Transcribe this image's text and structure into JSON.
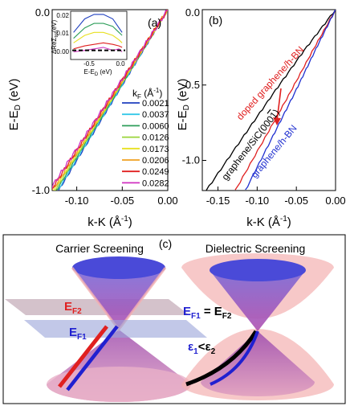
{
  "chart_data": [
    {
      "panel": "a",
      "panel_label": "(a)",
      "type": "line",
      "xlabel": "k-K (Å⁻¹)",
      "ylabel": "E-E_D (eV)",
      "xlim": [
        -0.127,
        0.0
      ],
      "ylim": [
        -1.0,
        0.0
      ],
      "xticks": [
        "-0.10",
        "-0.05",
        "0.00"
      ],
      "yticks": [
        "0.0",
        "-1.0"
      ],
      "legend_title": "k_F (Å⁻¹)",
      "legend_position": "right",
      "series": [
        {
          "name": "0.0021",
          "color": "#1f3fbf",
          "x": [
            -0.12,
            0.0
          ],
          "y": [
            -1.0,
            0.0
          ]
        },
        {
          "name": "0.0037",
          "color": "#35c8e8",
          "x": [
            -0.121,
            0.0
          ],
          "y": [
            -1.0,
            0.0
          ]
        },
        {
          "name": "0.0060",
          "color": "#2e9e5a",
          "x": [
            -0.1225,
            0.0
          ],
          "y": [
            -1.0,
            0.0
          ]
        },
        {
          "name": "0.0126",
          "color": "#9ad43a",
          "x": [
            -0.124,
            0.0
          ],
          "y": [
            -1.0,
            0.0
          ]
        },
        {
          "name": "0.0173",
          "color": "#e8e020",
          "x": [
            -0.1255,
            0.0
          ],
          "y": [
            -1.0,
            0.0
          ]
        },
        {
          "name": "0.0206",
          "color": "#f0a020",
          "x": [
            -0.127,
            0.0
          ],
          "y": [
            -1.0,
            0.0
          ]
        },
        {
          "name": "0.0249",
          "color": "#e02020",
          "x": [
            -0.1285,
            0.0
          ],
          "y": [
            -1.0,
            0.0
          ]
        },
        {
          "name": "0.0282",
          "color": "#d030c0",
          "x": [
            -0.13,
            0.0
          ],
          "y": [
            -1.0,
            0.0
          ]
        }
      ],
      "inset": {
        "type": "line",
        "xlabel": "E-E_D (eV)",
        "ylabel": "ΔReΣ_tot (eV)",
        "xlim": [
          -0.8,
          0.05
        ],
        "ylim": [
          -0.005,
          0.025
        ],
        "xticks": [
          "-0.5",
          "0.0"
        ],
        "yticks": [
          "0.02",
          "0.01",
          "0.00"
        ],
        "series": [
          {
            "color": "#1f3fbf",
            "x": [
              -0.78,
              -0.6,
              -0.45,
              -0.3,
              -0.15,
              -0.05,
              0.0
            ],
            "y": [
              0.012,
              0.021,
              0.024,
              0.024,
              0.021,
              0.015,
              0.012
            ]
          },
          {
            "color": "#2e9e5a",
            "x": [
              -0.78,
              -0.6,
              -0.45,
              -0.3,
              -0.15,
              -0.05,
              0.0
            ],
            "y": [
              0.008,
              0.015,
              0.018,
              0.018,
              0.016,
              0.012,
              0.01
            ]
          },
          {
            "color": "#e8e020",
            "x": [
              -0.78,
              -0.6,
              -0.45,
              -0.3,
              -0.15,
              -0.05,
              0.0
            ],
            "y": [
              0.005,
              0.01,
              0.012,
              0.012,
              0.01,
              0.007,
              0.005
            ]
          },
          {
            "color": "#e02020",
            "x": [
              -0.78,
              -0.6,
              -0.45,
              -0.3,
              -0.15,
              -0.05,
              0.0
            ],
            "y": [
              0.001,
              0.003,
              0.004,
              0.005,
              0.004,
              0.003,
              0.002
            ]
          },
          {
            "color": "#d030c0",
            "x": [
              -0.78,
              -0.6,
              -0.45,
              -0.3,
              -0.15,
              -0.05,
              0.0
            ],
            "y": [
              -0.001,
              0.0,
              0.001,
              0.002,
              0.0,
              0.001,
              -0.001
            ]
          }
        ],
        "reference_line": {
          "y": 0.0,
          "style": "dashed",
          "color": "#000000"
        }
      }
    },
    {
      "panel": "b",
      "panel_label": "(b)",
      "type": "line",
      "xlabel": "k-K (Å⁻¹)",
      "ylabel": "E-E_D (eV)",
      "xlim": [
        -0.17,
        0.0
      ],
      "ylim": [
        -1.2,
        0.0
      ],
      "xticks": [
        "-0.15",
        "-0.10",
        "-0.05",
        "0.00"
      ],
      "yticks": [
        "0.0",
        "-0.5",
        "-1.0"
      ],
      "series": [
        {
          "name": "graphene/SiC(000ī)",
          "color": "#000000",
          "x": [
            -0.165,
            -0.12,
            -0.08,
            -0.04,
            0.0
          ],
          "y": [
            -1.2,
            -0.86,
            -0.56,
            -0.27,
            0.0
          ]
        },
        {
          "name": "doped graphene/h-BN",
          "color": "#e02020",
          "x": [
            -0.128,
            -0.09,
            -0.06,
            -0.03,
            0.0
          ],
          "y": [
            -1.2,
            -0.85,
            -0.57,
            -0.28,
            0.0
          ]
        },
        {
          "name": "graphene/h-BN",
          "color": "#2030d0",
          "x": [
            -0.115,
            -0.08,
            -0.05,
            -0.025,
            0.0
          ],
          "y": [
            -1.2,
            -0.84,
            -0.53,
            -0.26,
            0.0
          ]
        }
      ]
    }
  ],
  "panel_c": {
    "label": "(c)",
    "left_title": "Carrier Screening",
    "right_title": "Dielectric Screening",
    "left_ef2": "E",
    "left_ef2_sub": "F2",
    "left_ef1": "E",
    "left_ef1_sub": "F1",
    "right_eq_a": "E",
    "right_eq_a_sub": "F1",
    "right_eq_mid": " = E",
    "right_eq_b_sub": "F2",
    "right_eps_a": "ε",
    "right_eps_a_sub": "1",
    "right_eps_mid": "<ε",
    "right_eps_b_sub": "2",
    "colors": {
      "red": "#e02020",
      "blue": "#2020d0",
      "black": "#000000",
      "cone_magenta": "#c070c0",
      "cone_pink": "#f4b0b0",
      "cone_blue": "#4a4ad8"
    }
  }
}
